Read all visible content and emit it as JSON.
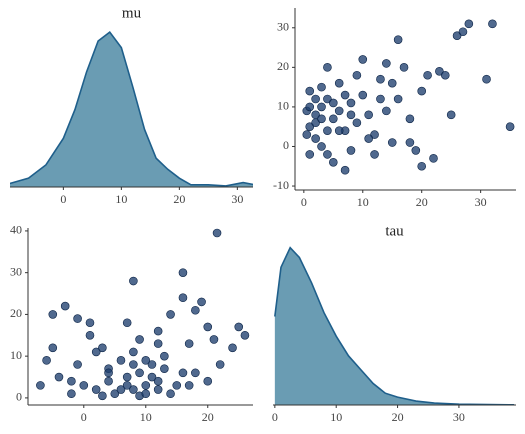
{
  "chart_data": [
    {
      "type": "density",
      "title": "mu",
      "color": "#6a9cb3",
      "line_color": "#1f5f8b",
      "x": [
        -10,
        -6,
        -3,
        0,
        2,
        4,
        6,
        8,
        10,
        12,
        14,
        16,
        18,
        20,
        22,
        25,
        28,
        31,
        33
      ],
      "values": [
        0.001,
        0.004,
        0.01,
        0.022,
        0.035,
        0.052,
        0.066,
        0.07,
        0.063,
        0.045,
        0.026,
        0.013,
        0.008,
        0.004,
        0.001,
        0.001,
        0.0005,
        0.002,
        0.001
      ],
      "xlim": [
        -9.2,
        32.7
      ],
      "ylim": [
        0,
        0.08
      ],
      "xticks": [
        0,
        10,
        20,
        30
      ]
    },
    {
      "type": "scatter",
      "color": "#1f3f6e",
      "line_color": "#0b2345",
      "x": [
        1,
        2,
        3,
        0.5,
        4,
        5,
        6,
        2,
        1,
        3,
        7,
        8,
        9,
        10,
        11,
        12,
        13,
        14,
        15,
        16,
        17,
        18,
        19,
        20,
        21,
        22,
        23,
        25,
        26,
        28,
        32,
        35,
        31,
        16,
        5,
        7,
        4,
        10,
        12,
        2,
        3,
        6,
        8,
        14,
        18,
        20,
        24,
        27,
        1,
        4,
        9,
        11,
        13,
        15,
        6,
        0.5,
        2,
        5,
        7,
        3,
        8,
        1,
        4
      ],
      "y": [
        5,
        8,
        10,
        3,
        12,
        7,
        9,
        2,
        -2,
        15,
        4,
        11,
        6,
        13,
        8,
        3,
        17,
        9,
        1,
        12,
        20,
        7,
        -1,
        14,
        18,
        -3,
        19,
        8,
        28,
        31,
        31,
        5,
        17,
        27,
        -4,
        -6,
        20,
        22,
        -2,
        12,
        0,
        16,
        -1,
        21,
        1,
        -5,
        18,
        29,
        14,
        -2,
        18,
        2,
        12,
        16,
        4,
        9,
        6,
        11,
        13,
        7,
        8,
        10,
        4
      ],
      "xlim": [
        -1.5,
        36
      ],
      "ylim": [
        -11,
        35
      ],
      "xticks": [
        0,
        10,
        20,
        30
      ],
      "yticks": [
        -10,
        0,
        10,
        20,
        30
      ]
    },
    {
      "type": "scatter",
      "color": "#1f3f6e",
      "line_color": "#0b2345",
      "x": [
        5,
        8,
        10,
        3,
        12,
        7,
        9,
        2,
        -2,
        15,
        4,
        11,
        6,
        13,
        8,
        3,
        17,
        9,
        1,
        12,
        20,
        7,
        -1,
        14,
        18,
        -3,
        19,
        8,
        22,
        25,
        21.5,
        -6,
        17,
        24,
        -4,
        -7,
        20,
        16,
        -5,
        12,
        0,
        16,
        -1,
        21,
        1,
        -5,
        18,
        26,
        14,
        -2,
        10,
        2,
        12,
        16,
        4,
        9,
        6,
        11,
        13,
        7,
        8,
        10,
        4
      ],
      "y": [
        1,
        2,
        3,
        0.5,
        4,
        5,
        6,
        2,
        1,
        3,
        7,
        8,
        9,
        10,
        11,
        12,
        13,
        14,
        15,
        16,
        17,
        18,
        19,
        20,
        21,
        22,
        23,
        28,
        8,
        17,
        39.5,
        9,
        3,
        12,
        5,
        3,
        4,
        30,
        12,
        2,
        3,
        6,
        8,
        14,
        18,
        20,
        6,
        15,
        1,
        4,
        9,
        11,
        13,
        24,
        6,
        0.5,
        2,
        5,
        7,
        3,
        8,
        1,
        4
      ],
      "xlim": [
        -9,
        27.3
      ],
      "ylim": [
        -1.7,
        40.7
      ],
      "xticks": [
        0,
        10,
        20
      ],
      "yticks": [
        0,
        10,
        20,
        30,
        40
      ]
    },
    {
      "type": "density",
      "title": "tau",
      "color": "#6a9cb3",
      "line_color": "#1f5f8b",
      "x": [
        0,
        1,
        2.5,
        4,
        6,
        8,
        10,
        12,
        14,
        16,
        18,
        20,
        23,
        26,
        30,
        35,
        39
      ],
      "values": [
        0.045,
        0.07,
        0.08,
        0.075,
        0.062,
        0.047,
        0.035,
        0.025,
        0.018,
        0.011,
        0.006,
        0.004,
        0.002,
        0.001,
        0.0004,
        0.0002,
        0.0001
      ],
      "xlim": [
        -0.3,
        39.3
      ],
      "ylim": [
        0,
        0.09
      ],
      "xticks": [
        0,
        10,
        20,
        30
      ]
    }
  ]
}
